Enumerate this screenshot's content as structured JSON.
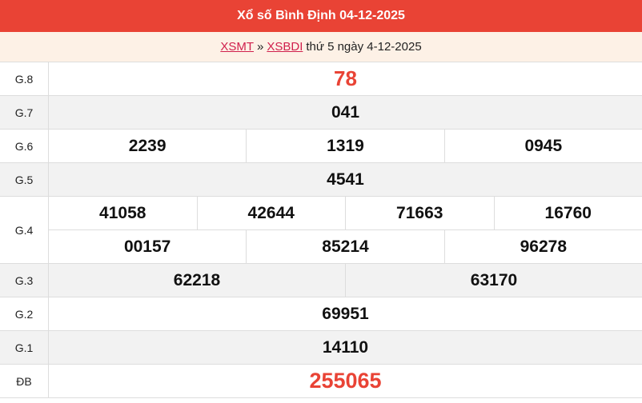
{
  "title": "Xổ số Bình Định 04-12-2025",
  "breadcrumb": {
    "link1": "XSMT",
    "sep": "»",
    "link2": "XSBDI",
    "text": "thứ 5 ngày 4-12-2025"
  },
  "accent_color": "#e94335",
  "prizes": [
    {
      "label": "G.8",
      "rows": [
        [
          "78"
        ]
      ]
    },
    {
      "label": "G.7",
      "rows": [
        [
          "041"
        ]
      ]
    },
    {
      "label": "G.6",
      "rows": [
        [
          "2239",
          "1319",
          "0945"
        ]
      ]
    },
    {
      "label": "G.5",
      "rows": [
        [
          "4541"
        ]
      ]
    },
    {
      "label": "G.4",
      "rows": [
        [
          "41058",
          "42644",
          "71663",
          "16760"
        ],
        [
          "00157",
          "85214",
          "96278"
        ]
      ]
    },
    {
      "label": "G.3",
      "rows": [
        [
          "62218",
          "63170"
        ]
      ]
    },
    {
      "label": "G.2",
      "rows": [
        [
          "69951"
        ]
      ]
    },
    {
      "label": "G.1",
      "rows": [
        [
          "14110"
        ]
      ]
    },
    {
      "label": "ĐB",
      "rows": [
        [
          "255065"
        ]
      ]
    }
  ]
}
